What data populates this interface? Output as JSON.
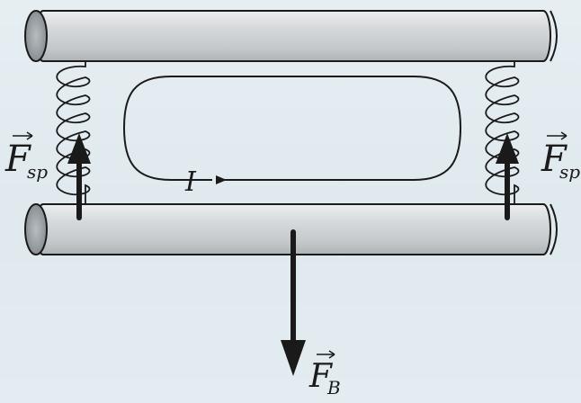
{
  "labels": {
    "current": "I",
    "spring_force_left_symbol": "F",
    "spring_force_left_sub": "sp",
    "spring_force_right_symbol": "F",
    "spring_force_right_sub": "sp",
    "magnetic_force_symbol": "F",
    "magnetic_force_sub": "B"
  },
  "colors": {
    "rod_fill": "#c9ccce",
    "rod_end": "#9ea4a8",
    "ink": "#1a1a1a",
    "background": "#e2ecf0"
  }
}
